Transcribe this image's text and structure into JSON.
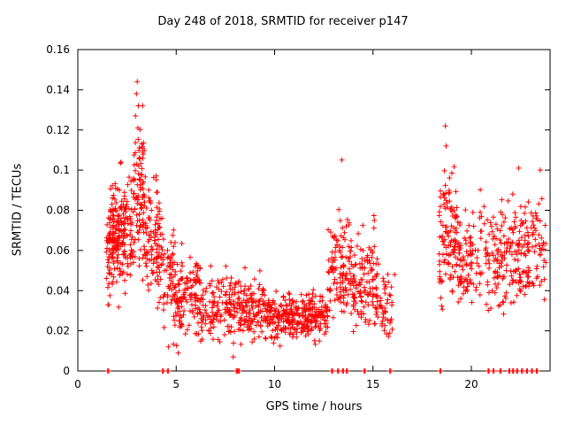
{
  "chart_data": {
    "type": "scatter",
    "title": "Day 248 of 2018, SRMTID for receiver p147",
    "xlabel": "GPS time / hours",
    "ylabel": "SRMTID / TECUs",
    "xlim": [
      0,
      24
    ],
    "ylim": [
      0,
      0.16
    ],
    "xticks": [
      0,
      5,
      10,
      15,
      20
    ],
    "xtick_labels": [
      "0",
      "5",
      "10",
      "15",
      "20"
    ],
    "yticks": [
      0,
      0.02,
      0.04,
      0.06,
      0.08,
      0.1,
      0.12,
      0.14,
      0.16
    ],
    "ytick_labels": [
      "0",
      "0.02",
      "0.04",
      "0.06",
      "0.08",
      "0.1",
      "0.12",
      "0.14",
      "0.16"
    ],
    "marker": "plus",
    "point_color": "#ff0000",
    "axis_color": "#000000",
    "grid": false,
    "legend": "none",
    "clusters": [
      {
        "x0": 1.45,
        "x1": 2.1,
        "n": 90,
        "mean": 0.062,
        "sd": 0.012,
        "lo": 0.03,
        "hi": 0.095
      },
      {
        "x0": 1.6,
        "x1": 2.4,
        "n": 60,
        "mean": 0.075,
        "sd": 0.008,
        "lo": 0.05,
        "hi": 0.095
      },
      {
        "x0": 2.1,
        "x1": 2.8,
        "n": 80,
        "mean": 0.07,
        "sd": 0.015,
        "lo": 0.035,
        "hi": 0.11
      },
      {
        "x0": 2.8,
        "x1": 3.4,
        "n": 90,
        "mean": 0.085,
        "sd": 0.022,
        "lo": 0.04,
        "hi": 0.145
      },
      {
        "x0": 3.3,
        "x1": 4.2,
        "n": 90,
        "mean": 0.068,
        "sd": 0.016,
        "lo": 0.035,
        "hi": 0.105
      },
      {
        "x0": 4.0,
        "x1": 4.9,
        "n": 70,
        "mean": 0.052,
        "sd": 0.012,
        "lo": 0.02,
        "hi": 0.085
      },
      {
        "x0": 4.8,
        "x1": 6.3,
        "n": 140,
        "mean": 0.037,
        "sd": 0.009,
        "lo": 0.012,
        "hi": 0.075
      },
      {
        "x0": 6.3,
        "x1": 8.2,
        "n": 140,
        "mean": 0.031,
        "sd": 0.008,
        "lo": 0.01,
        "hi": 0.06
      },
      {
        "x0": 8.2,
        "x1": 9.6,
        "n": 120,
        "mean": 0.03,
        "sd": 0.008,
        "lo": 0.013,
        "hi": 0.062
      },
      {
        "x0": 9.6,
        "x1": 12.7,
        "n": 300,
        "mean": 0.027,
        "sd": 0.006,
        "lo": 0.012,
        "hi": 0.047
      },
      {
        "x0": 12.7,
        "x1": 13.9,
        "n": 110,
        "mean": 0.05,
        "sd": 0.013,
        "lo": 0.025,
        "hi": 0.082
      },
      {
        "x0": 13.9,
        "x1": 15.1,
        "n": 110,
        "mean": 0.044,
        "sd": 0.012,
        "lo": 0.018,
        "hi": 0.078
      },
      {
        "x0": 15.1,
        "x1": 16.0,
        "n": 60,
        "mean": 0.034,
        "sd": 0.01,
        "lo": 0.013,
        "hi": 0.06
      },
      {
        "x0": 18.35,
        "x1": 19.3,
        "n": 110,
        "mean": 0.066,
        "sd": 0.016,
        "lo": 0.03,
        "hi": 0.105
      },
      {
        "x0": 19.3,
        "x1": 21.4,
        "n": 150,
        "mean": 0.055,
        "sd": 0.013,
        "lo": 0.028,
        "hi": 0.095
      },
      {
        "x0": 21.4,
        "x1": 23.8,
        "n": 190,
        "mean": 0.058,
        "sd": 0.013,
        "lo": 0.028,
        "hi": 0.103
      }
    ],
    "extra_points": [
      [
        3.02,
        0.144
      ],
      [
        2.98,
        0.138
      ],
      [
        3.08,
        0.132
      ],
      [
        2.93,
        0.127
      ],
      [
        3.05,
        0.121
      ],
      [
        2.2,
        0.104
      ],
      [
        13.42,
        0.105
      ],
      [
        18.68,
        0.122
      ],
      [
        18.72,
        0.112
      ],
      [
        4.6,
        0.012
      ],
      [
        5.1,
        0.009
      ],
      [
        7.9,
        0.007
      ],
      [
        16.1,
        0.048
      ],
      [
        23.5,
        0.1
      ],
      [
        22.4,
        0.101
      ]
    ],
    "baseline_x": [
      1.52,
      4.3,
      4.55,
      8.05,
      8.15,
      12.9,
      13.2,
      13.45,
      13.65,
      14.55,
      15.85,
      18.4,
      20.85,
      21.1,
      21.45,
      21.9,
      22.1,
      22.3,
      22.55,
      22.8,
      23.05,
      23.3
    ]
  }
}
